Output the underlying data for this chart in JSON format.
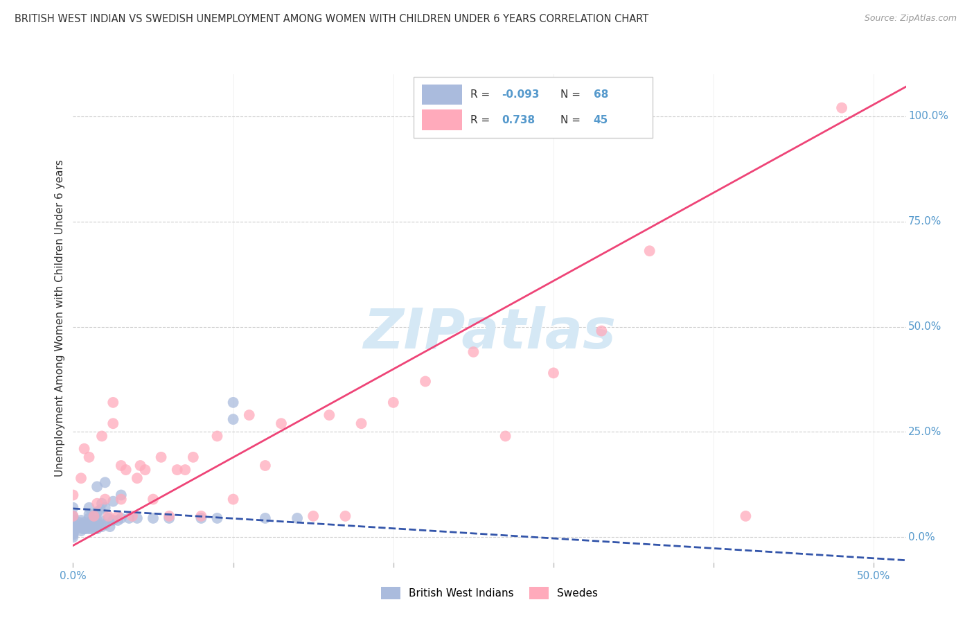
{
  "title": "BRITISH WEST INDIAN VS SWEDISH UNEMPLOYMENT AMONG WOMEN WITH CHILDREN UNDER 6 YEARS CORRELATION CHART",
  "source": "Source: ZipAtlas.com",
  "ylabel": "Unemployment Among Women with Children Under 6 years",
  "xlim": [
    0.0,
    0.52
  ],
  "ylim": [
    -0.06,
    1.1
  ],
  "color_blue": "#AABBDD",
  "color_pink": "#FFAABB",
  "color_blue_line": "#3355AA",
  "color_pink_line": "#EE4477",
  "color_axis": "#5599CC",
  "color_title": "#333333",
  "watermark": "ZIPatlas",
  "watermark_color": "#D5E8F5",
  "grid_color": "#CCCCCC",
  "background_color": "#FFFFFF",
  "R1": -0.093,
  "N1": 68,
  "R2": 0.738,
  "N2": 45,
  "legend1_label": "British West Indians",
  "legend2_label": "Swedes",
  "blue_line_x0": 0.0,
  "blue_line_y0": 0.068,
  "blue_line_x1": 0.52,
  "blue_line_y1": -0.055,
  "pink_line_x0": 0.0,
  "pink_line_y0": -0.02,
  "pink_line_x1": 0.52,
  "pink_line_y1": 1.07,
  "blue_x": [
    0.0,
    0.0,
    0.0,
    0.0,
    0.0,
    0.0,
    0.0,
    0.0,
    0.0,
    0.0,
    0.0,
    0.0,
    0.0,
    0.0,
    0.0,
    0.002,
    0.003,
    0.004,
    0.005,
    0.005,
    0.005,
    0.006,
    0.006,
    0.007,
    0.007,
    0.008,
    0.008,
    0.009,
    0.01,
    0.01,
    0.01,
    0.01,
    0.01,
    0.011,
    0.012,
    0.012,
    0.013,
    0.013,
    0.014,
    0.015,
    0.015,
    0.015,
    0.015,
    0.016,
    0.017,
    0.017,
    0.018,
    0.018,
    0.02,
    0.02,
    0.02,
    0.022,
    0.023,
    0.025,
    0.025,
    0.028,
    0.03,
    0.03,
    0.035,
    0.04,
    0.05,
    0.06,
    0.08,
    0.09,
    0.1,
    0.1,
    0.12,
    0.14
  ],
  "blue_y": [
    0.0,
    0.005,
    0.008,
    0.01,
    0.012,
    0.015,
    0.018,
    0.02,
    0.025,
    0.03,
    0.035,
    0.04,
    0.045,
    0.05,
    0.07,
    0.02,
    0.025,
    0.035,
    0.015,
    0.025,
    0.04,
    0.02,
    0.03,
    0.02,
    0.035,
    0.02,
    0.03,
    0.025,
    0.02,
    0.03,
    0.045,
    0.055,
    0.07,
    0.03,
    0.02,
    0.04,
    0.025,
    0.05,
    0.035,
    0.02,
    0.04,
    0.06,
    0.12,
    0.03,
    0.04,
    0.065,
    0.025,
    0.08,
    0.03,
    0.07,
    0.13,
    0.045,
    0.025,
    0.04,
    0.085,
    0.04,
    0.045,
    0.1,
    0.045,
    0.045,
    0.045,
    0.045,
    0.045,
    0.045,
    0.32,
    0.28,
    0.045,
    0.045
  ],
  "pink_x": [
    0.0,
    0.0,
    0.005,
    0.007,
    0.01,
    0.013,
    0.015,
    0.018,
    0.02,
    0.022,
    0.025,
    0.025,
    0.028,
    0.03,
    0.03,
    0.033,
    0.037,
    0.04,
    0.042,
    0.045,
    0.05,
    0.055,
    0.06,
    0.065,
    0.07,
    0.075,
    0.08,
    0.09,
    0.1,
    0.11,
    0.12,
    0.13,
    0.15,
    0.16,
    0.17,
    0.18,
    0.2,
    0.22,
    0.25,
    0.27,
    0.3,
    0.33,
    0.36,
    0.42,
    0.48
  ],
  "pink_y": [
    0.05,
    0.1,
    0.14,
    0.21,
    0.19,
    0.05,
    0.08,
    0.24,
    0.09,
    0.05,
    0.27,
    0.32,
    0.05,
    0.17,
    0.09,
    0.16,
    0.05,
    0.14,
    0.17,
    0.16,
    0.09,
    0.19,
    0.05,
    0.16,
    0.16,
    0.19,
    0.05,
    0.24,
    0.09,
    0.29,
    0.17,
    0.27,
    0.05,
    0.29,
    0.05,
    0.27,
    0.32,
    0.37,
    0.44,
    0.24,
    0.39,
    0.49,
    0.68,
    0.05,
    1.02
  ]
}
